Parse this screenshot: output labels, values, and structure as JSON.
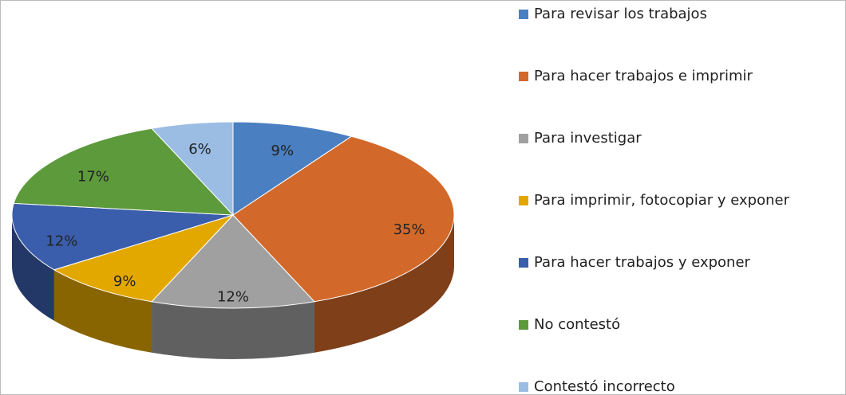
{
  "chart_data": {
    "type": "pie",
    "categories": [
      "Para revisar los trabajos",
      "Para hacer trabajos e imprimir",
      "Para investigar",
      "Para imprimir, fotocopiar y exponer",
      "Para hacer trabajos y exponer",
      "No contestó",
      "Contestó incorrecto"
    ],
    "values": [
      9,
      35,
      12,
      9,
      12,
      17,
      6
    ],
    "value_labels": [
      "9%",
      "35%",
      "12%",
      "9%",
      "12%",
      "17%",
      "6%"
    ],
    "colors": [
      "#4a7fc1",
      "#d2692a",
      "#a0a0a0",
      "#e3a800",
      "#3a5eab",
      "#5d9a3c",
      "#9bbde4"
    ],
    "legend": "right"
  }
}
